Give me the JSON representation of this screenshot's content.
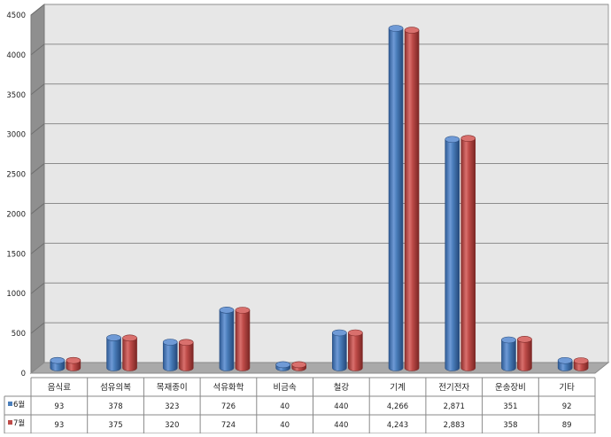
{
  "chart_data": {
    "type": "bar",
    "style": "3d-cylinder",
    "categories": [
      "음식료",
      "섬유의복",
      "목재종이",
      "석유화학",
      "비금속",
      "철강",
      "기계",
      "전기전자",
      "운송장비",
      "기타"
    ],
    "series": [
      {
        "name": "6월",
        "values": [
          93,
          378,
          323,
          726,
          40,
          440,
          4266,
          2871,
          351,
          92
        ],
        "labels": [
          "93",
          "378",
          "323",
          "726",
          "40",
          "440",
          "4,266",
          "2,871",
          "351",
          "92"
        ]
      },
      {
        "name": "7월",
        "values": [
          93,
          375,
          320,
          724,
          40,
          440,
          4243,
          2883,
          358,
          89
        ],
        "labels": [
          "93",
          "375",
          "320",
          "724",
          "40",
          "440",
          "4,243",
          "2,883",
          "358",
          "89"
        ]
      }
    ],
    "ylim": [
      0,
      4500
    ],
    "yticks": [
      0,
      500,
      1000,
      1500,
      2000,
      2500,
      3000,
      3500,
      4000,
      4500
    ],
    "grid": true,
    "legend": "data-table",
    "colors": {
      "6월": "#4a7ebb",
      "7월": "#be4b48"
    }
  }
}
